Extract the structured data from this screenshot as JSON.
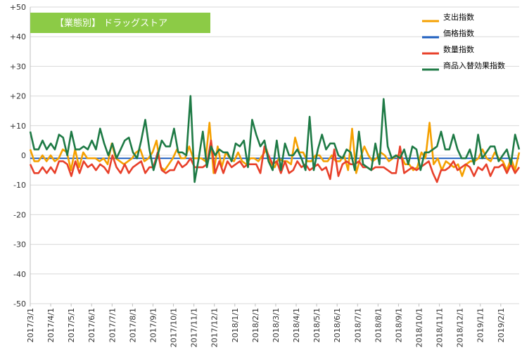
{
  "chart_data": {
    "type": "line",
    "title": "【業態別】 ドラッグストア",
    "ylim": [
      -50,
      50
    ],
    "yticks": [
      "+50",
      "+40",
      "+30",
      "+20",
      "+10",
      "0",
      "-10",
      "-20",
      "-30",
      "-40",
      "-50"
    ],
    "ytick_values": [
      50,
      40,
      30,
      20,
      10,
      0,
      -10,
      -20,
      -30,
      -40,
      -50
    ],
    "x_labels": [
      "2017/3/1",
      "2017/4/1",
      "2017/5/1",
      "2017/6/1",
      "2017/7/1",
      "2017/8/1",
      "2017/9/1",
      "2017/10/1",
      "2017/11/1",
      "2017/12/1",
      "2018/1/1",
      "2018/2/1",
      "2018/3/1",
      "2018/4/1",
      "2018/5/1",
      "2018/6/1",
      "2018/7/1",
      "2018/8/1",
      "2018/9/1",
      "2018/10/1",
      "2018/11/1",
      "2018/12/1",
      "2019/1/1",
      "2019/2/1"
    ],
    "grid": true,
    "legend_position": "top-right",
    "series": [
      {
        "name": "支出指数",
        "color": "#f5a000",
        "values": [
          2,
          -2,
          -2,
          0,
          -2,
          0,
          -2,
          -1,
          2,
          1,
          -5,
          2,
          -4,
          1,
          -1,
          -1,
          -1,
          -2,
          -1,
          -3,
          4,
          -1,
          -2,
          -3,
          -2,
          -1,
          1,
          2,
          -2,
          -1,
          1,
          5,
          -4,
          -5,
          -3,
          -1,
          2,
          -1,
          -1,
          3,
          -1,
          -1,
          -1,
          -2,
          11,
          -6,
          3,
          -4,
          1,
          -1,
          -2,
          1,
          -2,
          -3,
          -1,
          -1,
          -2,
          0,
          2,
          -3,
          -4,
          -1,
          -2,
          -2,
          -3,
          6,
          1,
          1,
          -2,
          -2,
          0,
          0,
          -2,
          -2,
          0,
          -2,
          -2,
          0,
          -5,
          9,
          -6,
          -1,
          3,
          0,
          -2,
          -1,
          1,
          0,
          -2,
          -1,
          0,
          0,
          -3,
          -3,
          -5,
          -4,
          1,
          -1,
          11,
          -3,
          -1,
          -5,
          -2,
          -3,
          -4,
          -3,
          -7,
          -3,
          -2,
          -2,
          -1,
          2,
          -1,
          -2,
          1,
          -1,
          -2,
          -5,
          -1,
          -5,
          1
        ]
      },
      {
        "name": "価格指数",
        "color": "#1f5fbf",
        "values": [
          -1,
          -1,
          -1,
          -1,
          -1,
          -1,
          -1,
          -1,
          -1,
          -1,
          -1,
          -1,
          -1,
          -1,
          -1,
          -1,
          -1,
          -1,
          -1,
          -1,
          -1,
          -1,
          -1,
          -1,
          -1,
          -1,
          -1,
          -1,
          -1,
          -1,
          -1,
          -1,
          -1,
          -1,
          -1,
          -1,
          -1,
          -1,
          -1,
          -1,
          -1,
          -1,
          -1,
          -1,
          -1,
          -1,
          -1,
          -1,
          -1,
          -1,
          -1,
          -1,
          -1,
          -1,
          -1,
          -1,
          -1,
          -1,
          -1,
          -1,
          -1,
          -1,
          -1,
          -1,
          -1,
          -1,
          -1,
          -1,
          -1,
          -1,
          -1,
          -1,
          -1,
          -1,
          -1,
          -1,
          -1,
          -1,
          -1,
          -1,
          -1,
          -1,
          -1,
          -1,
          -1,
          -1,
          -1,
          -1,
          -1,
          -1,
          -1,
          -1,
          -1,
          -1,
          -1,
          -1,
          -1,
          -1,
          -1,
          -1,
          -1,
          -1,
          -1,
          -1,
          -1,
          -1,
          -1,
          -1,
          -1,
          -1,
          -1,
          -1,
          -1,
          -1,
          -1,
          -1,
          -1,
          -1,
          -1,
          -1
        ]
      },
      {
        "name": "数量指数",
        "color": "#e8402a",
        "values": [
          -3,
          -6,
          -6,
          -4,
          -6,
          -4,
          -6,
          -2,
          -2,
          -3,
          -7,
          -2,
          -6,
          -2,
          -4,
          -3,
          -5,
          -3,
          -4,
          -6,
          0,
          -4,
          -6,
          -3,
          -6,
          -4,
          -3,
          -2,
          -6,
          -4,
          -4,
          1,
          -5,
          -6,
          -5,
          -5,
          -2,
          -4,
          -3,
          -1,
          -4,
          -4,
          -4,
          -3,
          5,
          -6,
          -2,
          -6,
          -2,
          -4,
          -3,
          -2,
          -4,
          -3,
          -3,
          -3,
          -6,
          3,
          0,
          -3,
          -2,
          -6,
          -2,
          -6,
          -5,
          -2,
          -4,
          -3,
          -5,
          -4,
          -3,
          -5,
          -4,
          -8,
          2,
          -7,
          -3,
          -2,
          -3,
          -3,
          -2,
          -4,
          -4,
          -5,
          -4,
          -4,
          -4,
          -5,
          -6,
          -6,
          3,
          -6,
          -5,
          -4,
          -5,
          -4,
          -3,
          -2,
          -6,
          -9,
          -5,
          -5,
          -4,
          -2,
          -5,
          -4,
          -3,
          -4,
          -7,
          -4,
          -5,
          -3,
          -7,
          -4,
          -4,
          -3,
          -6,
          -3,
          -6,
          -4
        ]
      },
      {
        "name": "商品入替効果指数",
        "color": "#1e7a45",
        "values": [
          8,
          2,
          2,
          5,
          2,
          4,
          2,
          7,
          6,
          0,
          8,
          2,
          2,
          3,
          2,
          5,
          2,
          9,
          4,
          0,
          4,
          -1,
          2,
          5,
          6,
          1,
          -1,
          5,
          12,
          2,
          -5,
          0,
          5,
          3,
          3,
          9,
          1,
          1,
          0,
          20,
          -9,
          -1,
          8,
          -4,
          3,
          0,
          2,
          1,
          1,
          -2,
          4,
          3,
          5,
          -4,
          12,
          7,
          3,
          5,
          -2,
          -5,
          5,
          -5,
          4,
          0,
          0,
          2,
          -1,
          -5,
          13,
          -5,
          2,
          7,
          2,
          4,
          4,
          0,
          -1,
          2,
          1,
          -5,
          8,
          -3,
          -4,
          -5,
          4,
          -3,
          19,
          3,
          -1,
          0,
          -1,
          2,
          -3,
          3,
          2,
          -5,
          1,
          1,
          2,
          3,
          8,
          2,
          2,
          7,
          2,
          -1,
          -1,
          2,
          -3,
          7,
          -1,
          1,
          3,
          3,
          -2,
          0,
          2,
          -3,
          7,
          2
        ]
      }
    ]
  }
}
